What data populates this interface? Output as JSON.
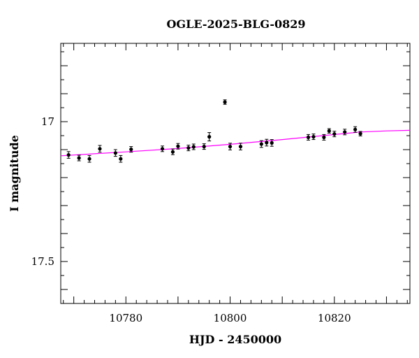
{
  "chart_data": {
    "type": "scatter",
    "title": "OGLE-2025-BLG-0829",
    "xlabel": "HJD - 2450000",
    "ylabel": "I magnitude",
    "xlim": [
      10767.5,
      10834.5
    ],
    "ylim": [
      17.65,
      16.72
    ],
    "y_inverted": true,
    "x_ticks": [
      10780,
      10800,
      10820
    ],
    "y_ticks": [
      17,
      17.5
    ],
    "x_tick_labels": [
      "10780",
      "10800",
      "10820"
    ],
    "y_tick_labels": [
      "17",
      "17.5"
    ],
    "grid": false,
    "colors": {
      "points": "#000000",
      "model": "#ff00ff",
      "frame": "#000000"
    },
    "series": [
      {
        "kind": "points",
        "points": [
          {
            "x": 10769.0,
            "y": 17.119,
            "err": 0.012
          },
          {
            "x": 10771.0,
            "y": 17.13,
            "err": 0.01
          },
          {
            "x": 10773.0,
            "y": 17.133,
            "err": 0.012
          },
          {
            "x": 10775.0,
            "y": 17.097,
            "err": 0.012
          },
          {
            "x": 10778.0,
            "y": 17.112,
            "err": 0.012
          },
          {
            "x": 10779.0,
            "y": 17.133,
            "err": 0.012
          },
          {
            "x": 10781.0,
            "y": 17.099,
            "err": 0.01
          },
          {
            "x": 10787.0,
            "y": 17.097,
            "err": 0.01
          },
          {
            "x": 10789.0,
            "y": 17.108,
            "err": 0.01
          },
          {
            "x": 10790.0,
            "y": 17.088,
            "err": 0.01
          },
          {
            "x": 10792.0,
            "y": 17.094,
            "err": 0.01
          },
          {
            "x": 10793.0,
            "y": 17.09,
            "err": 0.01
          },
          {
            "x": 10795.0,
            "y": 17.089,
            "err": 0.01
          },
          {
            "x": 10796.0,
            "y": 17.054,
            "err": 0.015
          },
          {
            "x": 10799.0,
            "y": 16.93,
            "err": 0.008
          },
          {
            "x": 10800.0,
            "y": 17.089,
            "err": 0.012
          },
          {
            "x": 10802.0,
            "y": 17.089,
            "err": 0.012
          },
          {
            "x": 10806.0,
            "y": 17.08,
            "err": 0.012
          },
          {
            "x": 10807.0,
            "y": 17.075,
            "err": 0.012
          },
          {
            "x": 10808.0,
            "y": 17.076,
            "err": 0.012
          },
          {
            "x": 10815.0,
            "y": 17.056,
            "err": 0.01
          },
          {
            "x": 10816.0,
            "y": 17.054,
            "err": 0.01
          },
          {
            "x": 10818.0,
            "y": 17.056,
            "err": 0.01
          },
          {
            "x": 10819.0,
            "y": 17.033,
            "err": 0.008
          },
          {
            "x": 10820.0,
            "y": 17.044,
            "err": 0.01
          },
          {
            "x": 10822.0,
            "y": 17.037,
            "err": 0.01
          },
          {
            "x": 10824.0,
            "y": 17.028,
            "err": 0.01
          },
          {
            "x": 10825.0,
            "y": 17.043,
            "err": 0.008
          }
        ]
      },
      {
        "kind": "model",
        "x": [
          10767.5,
          10780,
          10790,
          10800,
          10810,
          10820,
          10825,
          10830,
          10834.5
        ],
        "y": [
          17.122,
          17.108,
          17.096,
          17.081,
          17.064,
          17.046,
          17.037,
          17.033,
          17.031
        ]
      }
    ]
  }
}
